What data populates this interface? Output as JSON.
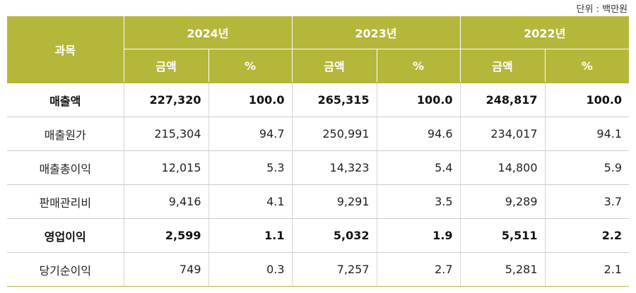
{
  "unit_note": "단위 : 백만원",
  "header": {
    "subject": "과목",
    "years": [
      "2024년",
      "2023년",
      "2022년"
    ],
    "amount_label": "금액",
    "percent_label": "%"
  },
  "rows": [
    {
      "label": "매출액",
      "bold": true,
      "values": [
        "227,320",
        "100.0",
        "265,315",
        "100.0",
        "248,817",
        "100.0"
      ]
    },
    {
      "label": "매출원가",
      "bold": false,
      "values": [
        "215,304",
        "94.7",
        "250,991",
        "94.6",
        "234,017",
        "94.1"
      ]
    },
    {
      "label": "매출총이익",
      "bold": false,
      "values": [
        "12,015",
        "5.3",
        "14,323",
        "5.4",
        "14,800",
        "5.9"
      ]
    },
    {
      "label": "판매관리비",
      "bold": false,
      "values": [
        "9,416",
        "4.1",
        "9,291",
        "3.5",
        "9,289",
        "3.7"
      ]
    },
    {
      "label": "영업이익",
      "bold": true,
      "values": [
        "2,599",
        "1.1",
        "5,032",
        "1.9",
        "5,511",
        "2.2"
      ]
    },
    {
      "label": "당기순이익",
      "bold": false,
      "values": [
        "749",
        "0.3",
        "7,257",
        "2.7",
        "5,281",
        "2.1"
      ]
    }
  ],
  "colors": {
    "header_bg": "#b5b73a",
    "header_text": "#ffffff"
  }
}
